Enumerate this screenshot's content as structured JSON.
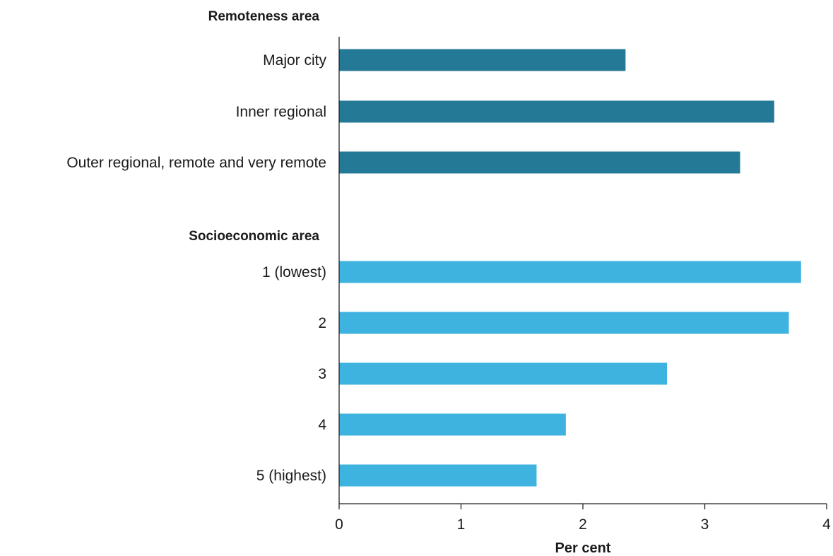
{
  "chart_data": {
    "type": "bar",
    "orientation": "horizontal",
    "xlabel": "Per cent",
    "xlim": [
      0,
      4
    ],
    "xticks": [
      "0",
      "1",
      "2",
      "3",
      "4"
    ],
    "grid": false,
    "groups": [
      {
        "name": "Remoteness area",
        "color": "#247a96",
        "categories": [
          "Major city",
          "Inner regional",
          "Outer regional, remote and very remote"
        ],
        "values": [
          2.35,
          3.57,
          3.29
        ]
      },
      {
        "name": "Socioeconomic area",
        "color": "#3eb3df",
        "categories": [
          "1 (lowest)",
          "2",
          "3",
          "4",
          "5 (highest)"
        ],
        "values": [
          3.79,
          3.69,
          2.69,
          1.86,
          1.62
        ]
      }
    ]
  }
}
